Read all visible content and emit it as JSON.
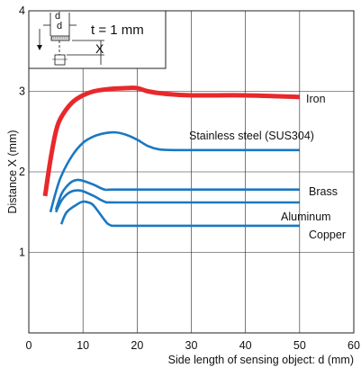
{
  "chart_data": {
    "type": "line",
    "xlabel": "Side length of sensing object: d (mm)",
    "ylabel": "Distance X (mm)",
    "xlim": [
      0,
      60
    ],
    "ylim": [
      0,
      4
    ],
    "xticks": [
      "0",
      "10",
      "20",
      "30",
      "40",
      "50",
      "60"
    ],
    "yticks": [
      "1",
      "2",
      "3",
      "4"
    ],
    "grid": true,
    "series": [
      {
        "name": "Iron",
        "color": "#e8282b",
        "points": [
          [
            3,
            1.7
          ],
          [
            4,
            2.15
          ],
          [
            5,
            2.5
          ],
          [
            6,
            2.68
          ],
          [
            8,
            2.86
          ],
          [
            10,
            2.95
          ],
          [
            12,
            3.0
          ],
          [
            15,
            3.03
          ],
          [
            18,
            3.04
          ],
          [
            20,
            3.04
          ],
          [
            22,
            3.0
          ],
          [
            25,
            2.97
          ],
          [
            30,
            2.95
          ],
          [
            40,
            2.95
          ],
          [
            50,
            2.93
          ]
        ]
      },
      {
        "name": "Stainless steel (SUS304)",
        "color": "#1a78c2",
        "points": [
          [
            4,
            1.5
          ],
          [
            5,
            1.75
          ],
          [
            6,
            1.95
          ],
          [
            8,
            2.2
          ],
          [
            10,
            2.36
          ],
          [
            12,
            2.44
          ],
          [
            14,
            2.48
          ],
          [
            16,
            2.49
          ],
          [
            18,
            2.46
          ],
          [
            20,
            2.4
          ],
          [
            22,
            2.32
          ],
          [
            24,
            2.28
          ],
          [
            27,
            2.27
          ],
          [
            35,
            2.27
          ],
          [
            50,
            2.27
          ]
        ]
      },
      {
        "name": "Brass",
        "color": "#1a78c2",
        "points": [
          [
            5,
            1.53
          ],
          [
            6,
            1.72
          ],
          [
            7,
            1.82
          ],
          [
            8,
            1.88
          ],
          [
            9,
            1.9
          ],
          [
            10,
            1.89
          ],
          [
            12,
            1.84
          ],
          [
            14,
            1.78
          ],
          [
            16,
            1.78
          ],
          [
            30,
            1.78
          ],
          [
            50,
            1.78
          ]
        ]
      },
      {
        "name": "Aluminum",
        "color": "#1a78c2",
        "points": [
          [
            5,
            1.5
          ],
          [
            6,
            1.64
          ],
          [
            7,
            1.72
          ],
          [
            8,
            1.76
          ],
          [
            9,
            1.77
          ],
          [
            10,
            1.76
          ],
          [
            12,
            1.7
          ],
          [
            14,
            1.63
          ],
          [
            16,
            1.62
          ],
          [
            30,
            1.62
          ],
          [
            50,
            1.62
          ]
        ]
      },
      {
        "name": "Copper",
        "color": "#1a78c2",
        "points": [
          [
            6,
            1.35
          ],
          [
            7,
            1.5
          ],
          [
            9,
            1.6
          ],
          [
            10,
            1.63
          ],
          [
            11,
            1.62
          ],
          [
            12,
            1.58
          ],
          [
            14,
            1.4
          ],
          [
            15,
            1.34
          ],
          [
            17,
            1.33
          ],
          [
            30,
            1.33
          ],
          [
            50,
            1.33
          ]
        ]
      }
    ]
  },
  "inset": {
    "d_label": "d",
    "t_label": "t = 1 mm",
    "x_label": "X"
  }
}
